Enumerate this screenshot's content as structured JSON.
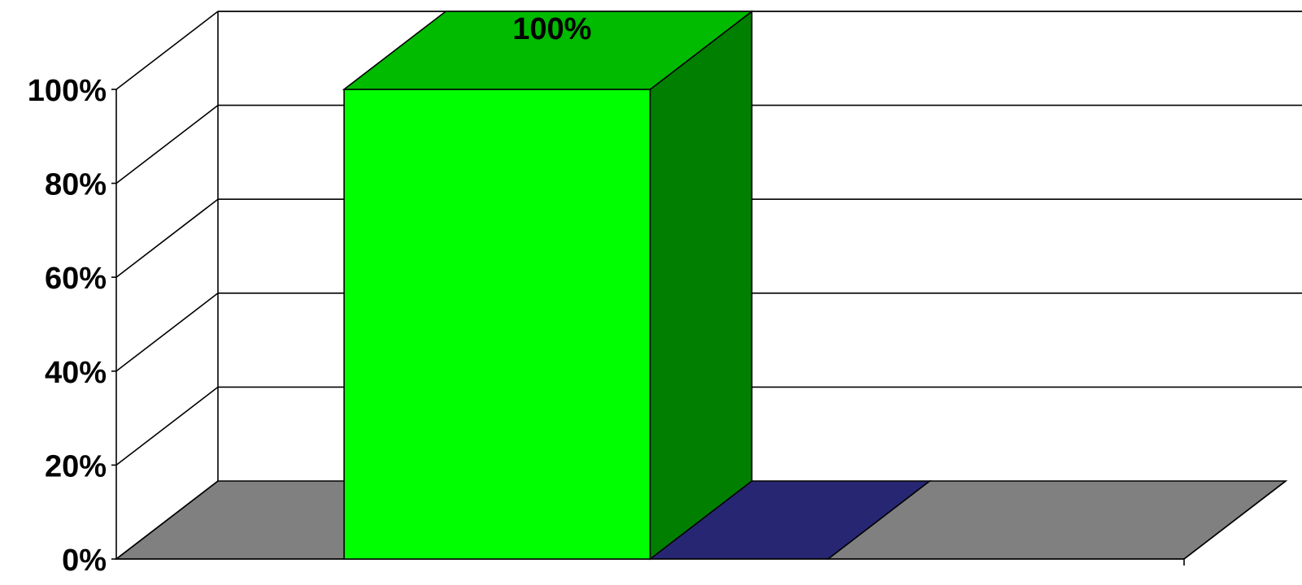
{
  "chart_data": {
    "type": "bar",
    "style": "3d-column",
    "categories": [
      "",
      "",
      ""
    ],
    "series": [
      {
        "values": [
          100,
          0,
          0
        ]
      }
    ],
    "data_labels": [
      "100%",
      "",
      ""
    ],
    "ylim": [
      0,
      100
    ],
    "yticks": [
      0,
      20,
      40,
      60,
      80,
      100
    ],
    "ytick_labels": [
      "0%",
      "20%",
      "40%",
      "60%",
      "80%",
      "100%"
    ],
    "grid": true,
    "colors": {
      "bar_front": "#00ff00",
      "bar_top": "#00bb00",
      "bar_side": "#007f00",
      "floor_1": "#808080",
      "floor_2": "#262673",
      "floor_3": "#808080"
    }
  }
}
